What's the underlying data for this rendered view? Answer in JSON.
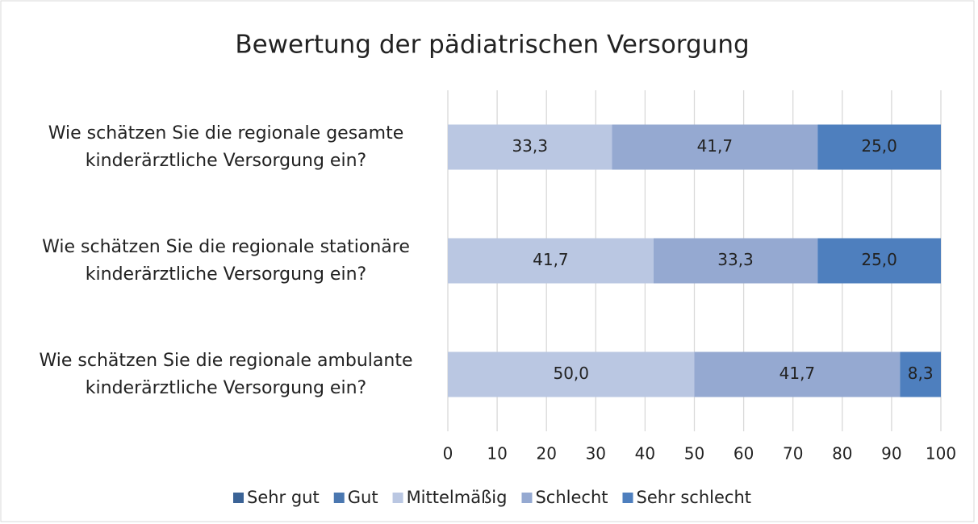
{
  "chart_data": {
    "type": "stacked_bar_horizontal",
    "title": "Bewertung der pädiatrischen Versorgung",
    "categories": [
      "Wie schätzen Sie die regionale gesamte\nkinderärztliche Versorgung ein?",
      "Wie schätzen Sie die regionale stationäre\nkinderärztliche Versorgung ein?",
      "Wie schätzen Sie die regionale ambulante\nkinderärztliche Versorgung ein?"
    ],
    "series": [
      {
        "name": "Sehr gut",
        "color": "#3b6396",
        "values": [
          null,
          null,
          null
        ]
      },
      {
        "name": "Gut",
        "color": "#4a77b0",
        "values": [
          null,
          null,
          null
        ]
      },
      {
        "name": "Mittelmäßig",
        "color": "#bac7e2",
        "values": [
          33.3,
          41.7,
          50.0
        ],
        "value_labels": [
          "33,3",
          "41,7",
          "50,0"
        ]
      },
      {
        "name": "Schlecht",
        "color": "#95a9d1",
        "values": [
          41.7,
          33.3,
          41.7
        ],
        "value_labels": [
          "41,7",
          "33,3",
          "41,7"
        ]
      },
      {
        "name": "Sehr schlecht",
        "color": "#4e7fbe",
        "values": [
          25.0,
          25.0,
          8.3
        ],
        "value_labels": [
          "25,0",
          "25,0",
          "8,3"
        ]
      }
    ],
    "xlim": [
      0,
      100
    ],
    "xticks": [
      0,
      10,
      20,
      30,
      40,
      50,
      60,
      70,
      80,
      90,
      100
    ],
    "grid": true,
    "legend": "bottom"
  }
}
